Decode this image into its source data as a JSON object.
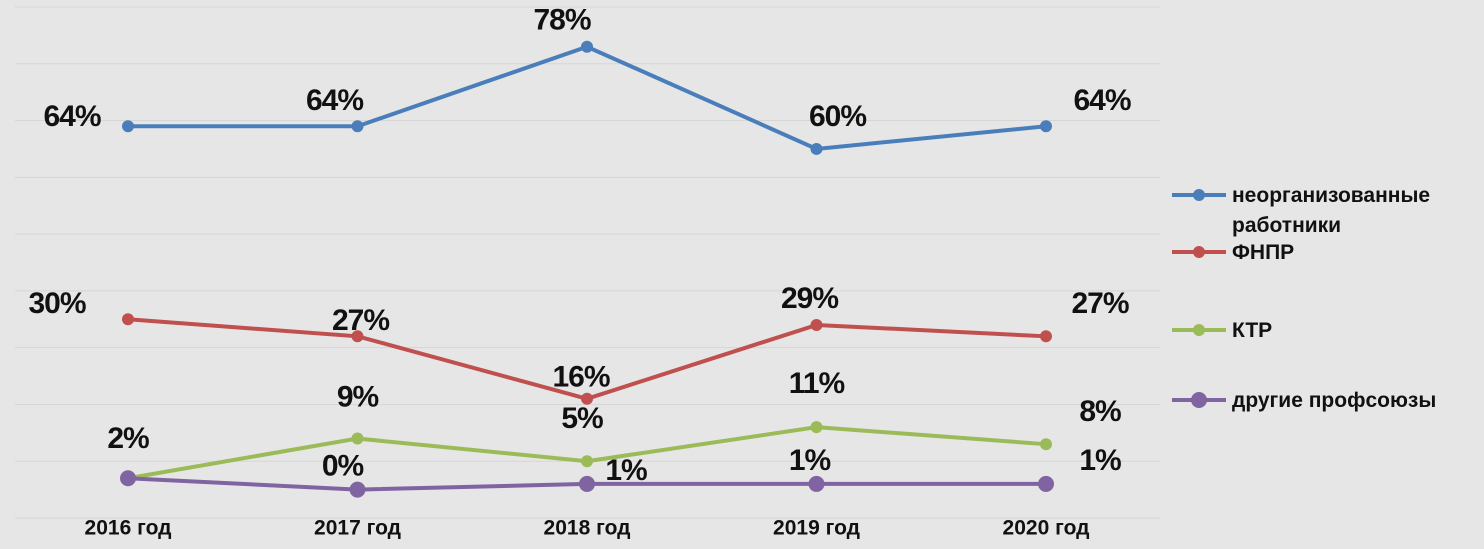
{
  "chart_data": {
    "type": "line",
    "categories": [
      "2016 год",
      "2017 год",
      "2018 год",
      "2019 год",
      "2020 год"
    ],
    "series": [
      {
        "name": "неорганизованные работники",
        "color": "#4a7ebb",
        "values": [
          64,
          64,
          78,
          60,
          64
        ],
        "value_labels": [
          "64%",
          "64%",
          "78%",
          "60%",
          "64%"
        ]
      },
      {
        "name": "ФНПР",
        "color": "#c0504d",
        "values": [
          30,
          27,
          16,
          29,
          27
        ],
        "value_labels": [
          "30%",
          "27%",
          "16%",
          "29%",
          "27%"
        ]
      },
      {
        "name": "КТР",
        "color": "#9bbb59",
        "values": [
          2,
          9,
          5,
          11,
          8
        ],
        "value_labels": [
          "2%",
          "9%",
          "5%",
          "11%",
          "8%"
        ]
      },
      {
        "name": "другие профсоюзы",
        "color": "#8064a2",
        "values": [
          2,
          0,
          1,
          1,
          1
        ],
        "value_labels": [
          null,
          "0%",
          "1%",
          "1%",
          "1%"
        ]
      }
    ],
    "ylim": [
      -5,
      85
    ],
    "yticks": [
      -5,
      5,
      15,
      25,
      35,
      45,
      55,
      65,
      75,
      85
    ],
    "grid": true,
    "legend": "right"
  }
}
